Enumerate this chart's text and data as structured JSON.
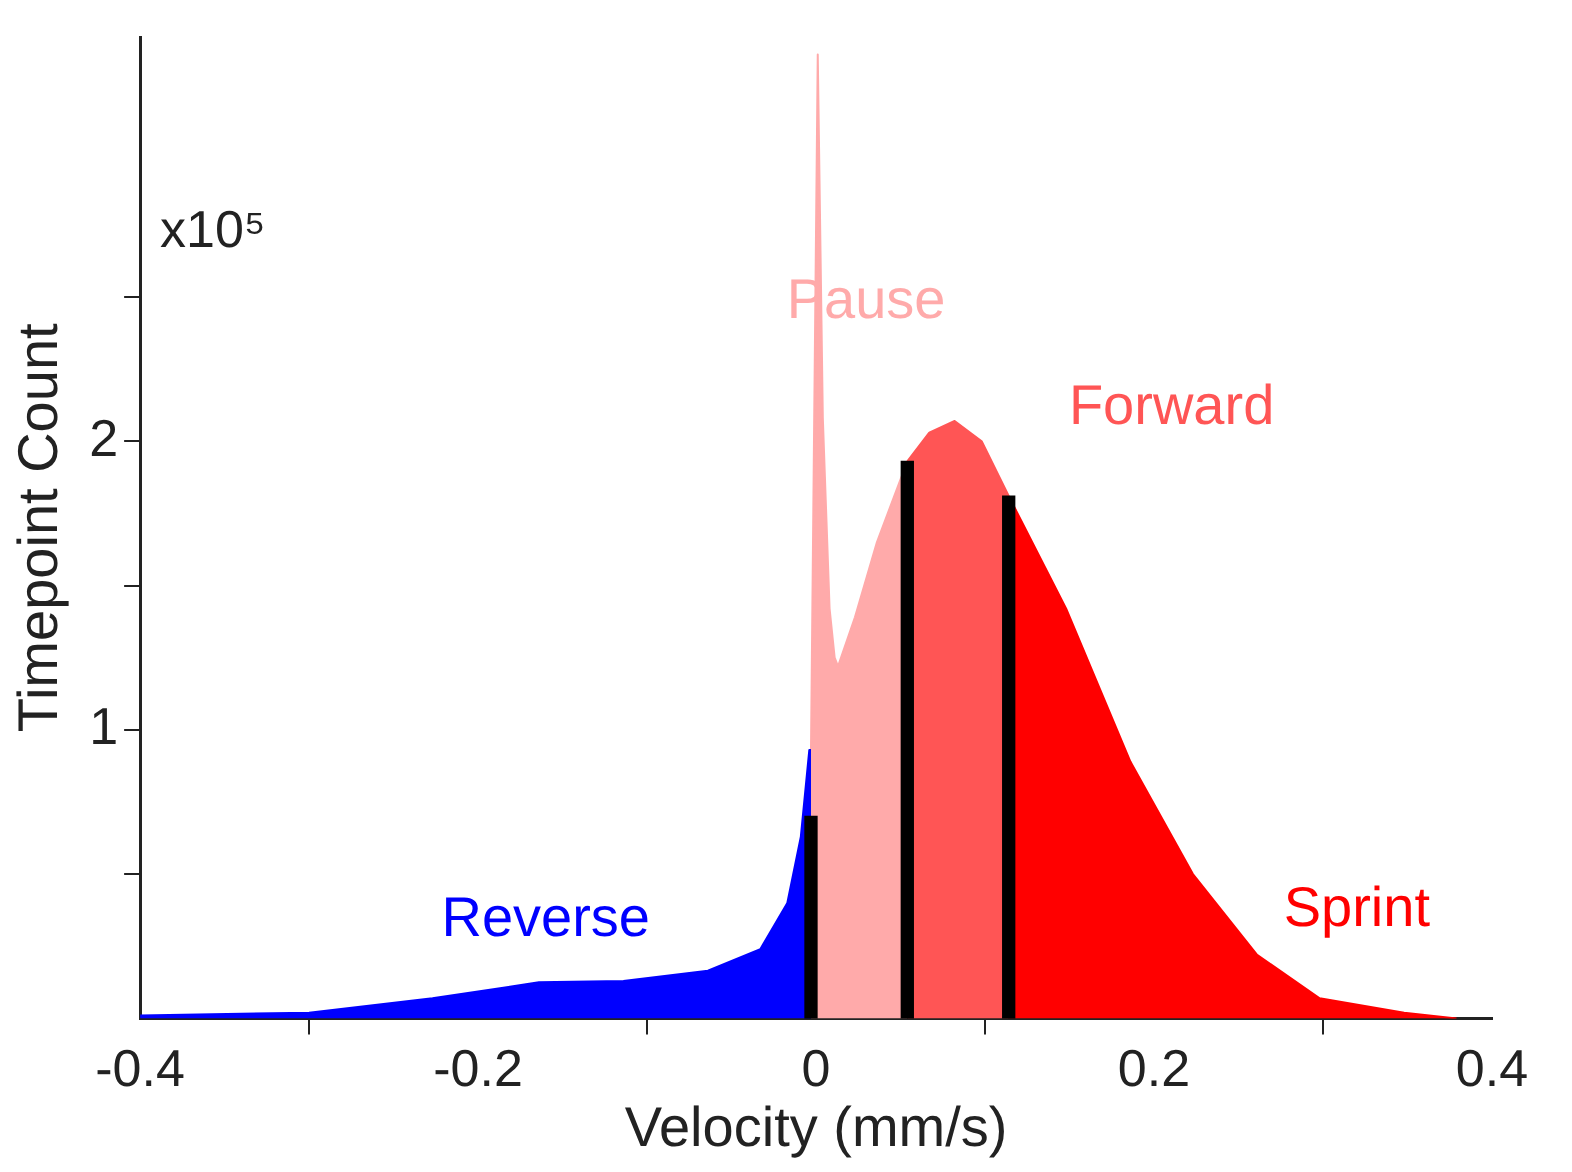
{
  "chart_data": {
    "type": "area",
    "xlabel": "Velocity (mm/s)",
    "ylabel": "Timepoint Count",
    "xlim": [
      -0.4,
      0.4
    ],
    "xticks": [
      -0.4,
      -0.2,
      0,
      0.2,
      0.4
    ],
    "ylim": [
      0,
      3.4
    ],
    "yticks": [
      {
        "value": 0.5,
        "label": null
      },
      1,
      {
        "value": 1.5,
        "label": null
      },
      2,
      {
        "value": 2.5,
        "label": null
      }
    ],
    "grid": false,
    "legend": false,
    "series": [
      {
        "name": "Reverse",
        "color": "#0000ff",
        "x": [
          -0.4,
          -0.3,
          -0.227,
          -0.164,
          -0.114,
          -0.064,
          -0.033,
          -0.017,
          -0.009,
          -0.004,
          -0.003
        ],
        "values": [
          0.01,
          0.02,
          0.07,
          0.125,
          0.13,
          0.165,
          0.24,
          0.4,
          0.63,
          0.93,
          0.93
        ]
      },
      {
        "name": "Pause",
        "color": "#ffaaaa",
        "x": [
          -0.003,
          0.001,
          0.004,
          0.008,
          0.011,
          0.013,
          0.023,
          0.036,
          0.054
        ],
        "values": [
          0.93,
          3.34,
          2.08,
          1.42,
          1.25,
          1.22,
          1.39,
          1.65,
          1.93
        ]
      },
      {
        "name": "Forward",
        "color": "#ff5555",
        "x": [
          0.054,
          0.067,
          0.082,
          0.098,
          0.114
        ],
        "values": [
          1.93,
          2.03,
          2.07,
          2.0,
          1.81
        ]
      },
      {
        "name": "Sprint",
        "color": "#ff0000",
        "x": [
          0.114,
          0.148,
          0.186,
          0.223,
          0.261,
          0.298,
          0.348,
          0.379
        ],
        "values": [
          1.81,
          1.42,
          0.89,
          0.5,
          0.22,
          0.07,
          0.02,
          0
        ]
      },
      {
        "type": "bar",
        "color": "#000000",
        "x": [
          -0.003,
          0.054,
          0.114
        ],
        "values": [
          0.7,
          1.93,
          1.81
        ]
      }
    ],
    "annotations": [
      "x10⁵"
    ]
  }
}
